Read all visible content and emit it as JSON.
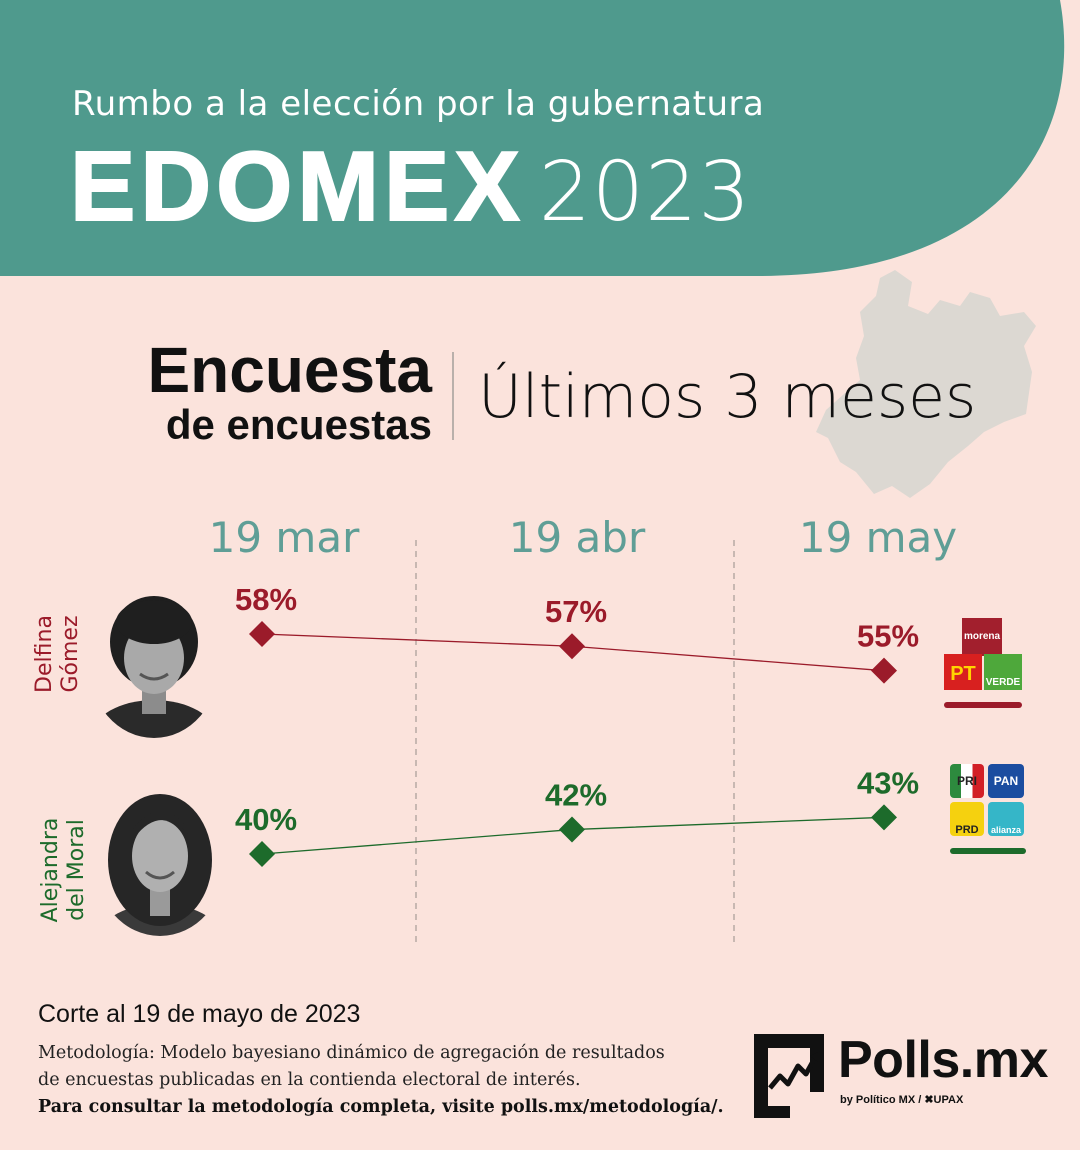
{
  "header": {
    "subtitle": "Rumbo a la elección por la gubernatura",
    "title_bold": "EDOMEX",
    "title_year": "2023"
  },
  "section": {
    "title_line1": "Encuesta",
    "title_line2": "de encuestas",
    "period": "Últimos 3 meses"
  },
  "chart_data": {
    "type": "line",
    "x": [
      "19 mar",
      "19 abr",
      "19 may"
    ],
    "ylim": [
      30,
      65
    ],
    "series": [
      {
        "name": "Delfina Gómez",
        "name_line1": "Delfina",
        "name_line2": "Gómez",
        "values": [
          58,
          57,
          55
        ],
        "labels": [
          "58%",
          "57%",
          "55%"
        ],
        "color": "#9b1b2a",
        "parties": [
          "morena",
          "PT",
          "VERDE"
        ]
      },
      {
        "name": "Alejandra del Moral",
        "name_line1": "Alejandra",
        "name_line2": "del Moral",
        "values": [
          40,
          42,
          43
        ],
        "labels": [
          "40%",
          "42%",
          "43%"
        ],
        "color": "#1d6b2b",
        "parties": [
          "PRI",
          "PAN",
          "PRD",
          "alianza"
        ]
      }
    ]
  },
  "colors": {
    "header_band": "#4f9a8d",
    "background": "#fbe3dc",
    "date_label": "#5f9e96",
    "map": "#dcd8d2"
  },
  "icons": {
    "state_map": "edomex-map-icon",
    "logo": "polls-chart-icon"
  },
  "footer": {
    "cutoff": "Corte al 19 de mayo de 2023",
    "methodology_line1": "Metodología: Modelo bayesiano dinámico de agregación de resultados",
    "methodology_line2": "de encuestas publicadas en la contienda electoral de interés.",
    "methodology_line3": "Para consultar la metodología completa, visite polls.mx/metodología/."
  },
  "brand": {
    "name": "Polls.mx",
    "byline": "by Político MX  /  ✖UPAX"
  }
}
